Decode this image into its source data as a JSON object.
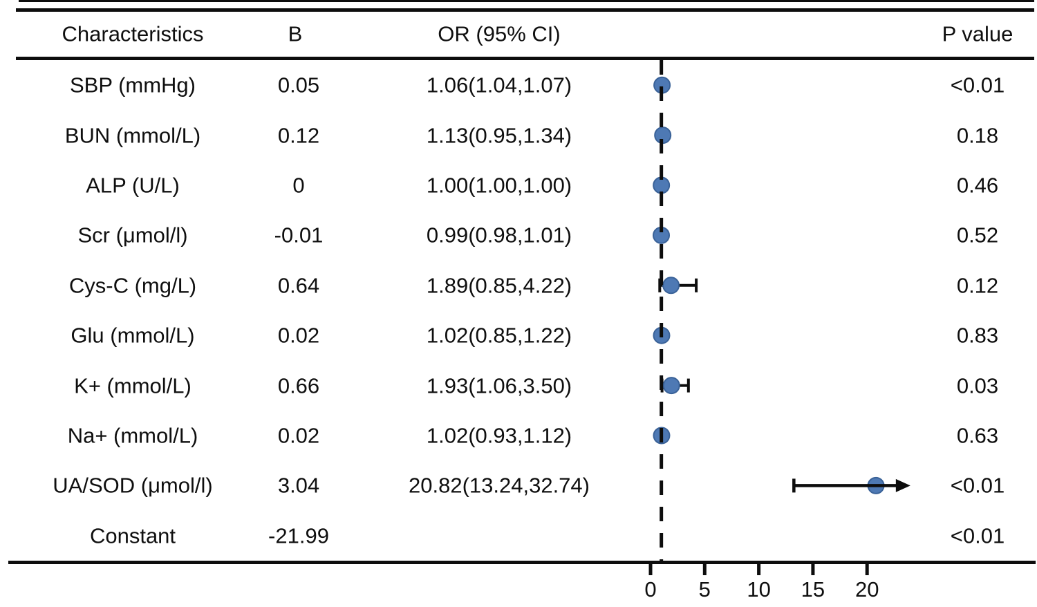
{
  "header": {
    "columns": [
      {
        "label": "Characteristics"
      },
      {
        "label": "B"
      },
      {
        "label": "OR (95% CI)"
      },
      {
        "label": "P value"
      }
    ]
  },
  "table": {
    "rows": [
      {
        "characteristic": "SBP (mmHg)",
        "b": "0.05",
        "or_ci": "1.06(1.04,1.07)",
        "p": "<0.01"
      },
      {
        "characteristic": "BUN (mmol/L)",
        "b": "0.12",
        "or_ci": "1.13(0.95,1.34)",
        "p": "0.18"
      },
      {
        "characteristic": "ALP (U/L)",
        "b": "0",
        "or_ci": "1.00(1.00,1.00)",
        "p": "0.46"
      },
      {
        "characteristic": "Scr (μmol/l)",
        "b": "-0.01",
        "or_ci": "0.99(0.98,1.01)",
        "p": "0.52"
      },
      {
        "characteristic": "Cys-C (mg/L)",
        "b": "0.64",
        "or_ci": "1.89(0.85,4.22)",
        "p": "0.12"
      },
      {
        "characteristic": "Glu (mmol/L)",
        "b": "0.02",
        "or_ci": "1.02(0.85,1.22)",
        "p": "0.83"
      },
      {
        "characteristic": "K+ (mmol/L)",
        "b": "0.66",
        "or_ci": "1.93(1.06,3.50)",
        "p": "0.03"
      },
      {
        "characteristic": "Na+ (mmol/L)",
        "b": "0.02",
        "or_ci": "1.02(0.93,1.12)",
        "p": "0.63"
      },
      {
        "characteristic": "UA/SOD (μmol/l)",
        "b": "3.04",
        "or_ci": "20.82(13.24,32.74)",
        "p": "<0.01"
      },
      {
        "characteristic": "Constant",
        "b": "-21.99",
        "or_ci": "",
        "p": "<0.01"
      }
    ]
  },
  "chart_data": {
    "type": "scatter",
    "subtype": "forest-plot",
    "title": "",
    "xlabel": "",
    "x_axis": {
      "ticks": [
        0,
        5,
        10,
        15,
        20
      ],
      "min": 0,
      "visible_max": 24,
      "grid": false
    },
    "reference_line_x": 1,
    "marker_color": "#4e79b4",
    "marker_edge_color": "#3a6298",
    "line_color": "#0d0d0d",
    "items": [
      {
        "label": "SBP (mmHg)",
        "b": 0.05,
        "or": 1.06,
        "ci_low": 1.04,
        "ci_high": 1.07,
        "p": "<0.01"
      },
      {
        "label": "BUN (mmol/L)",
        "b": 0.12,
        "or": 1.13,
        "ci_low": 0.95,
        "ci_high": 1.34,
        "p": "0.18"
      },
      {
        "label": "ALP (U/L)",
        "b": 0,
        "or": 1.0,
        "ci_low": 1.0,
        "ci_high": 1.0,
        "p": "0.46"
      },
      {
        "label": "Scr (μmol/l)",
        "b": -0.01,
        "or": 0.99,
        "ci_low": 0.98,
        "ci_high": 1.01,
        "p": "0.52"
      },
      {
        "label": "Cys-C (mg/L)",
        "b": 0.64,
        "or": 1.89,
        "ci_low": 0.85,
        "ci_high": 4.22,
        "p": "0.12"
      },
      {
        "label": "Glu (mmol/L)",
        "b": 0.02,
        "or": 1.02,
        "ci_low": 0.85,
        "ci_high": 1.22,
        "p": "0.83"
      },
      {
        "label": "K+ (mmol/L)",
        "b": 0.66,
        "or": 1.93,
        "ci_low": 1.06,
        "ci_high": 3.5,
        "p": "0.03"
      },
      {
        "label": "Na+ (mmol/L)",
        "b": 0.02,
        "or": 1.02,
        "ci_low": 0.93,
        "ci_high": 1.12,
        "p": "0.63"
      },
      {
        "label": "UA/SOD (μmol/l)",
        "b": 3.04,
        "or": 20.82,
        "ci_low": 13.24,
        "ci_high": 32.74,
        "p": "<0.01"
      },
      {
        "label": "Constant",
        "b": -21.99,
        "or": null,
        "ci_low": null,
        "ci_high": null,
        "p": "<0.01"
      }
    ]
  }
}
